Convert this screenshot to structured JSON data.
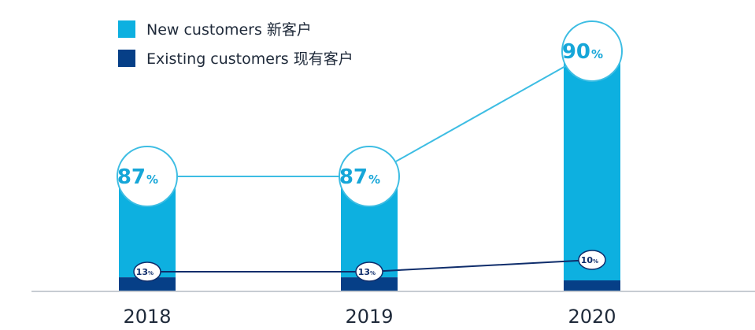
{
  "chart_data": {
    "type": "bar",
    "stacked": true,
    "categories": [
      "2018",
      "2019",
      "2020"
    ],
    "series": [
      {
        "name": "New customers 新客户",
        "values": [
          87,
          87,
          90
        ],
        "color": "#0db0e0"
      },
      {
        "name": "Existing customers 现有客户",
        "values": [
          13,
          13,
          10
        ],
        "color": "#063f87"
      }
    ],
    "unit": "%",
    "legend_position": "top-left",
    "grid": false,
    "trend_lines": true,
    "line_color_new": "#3dbde3",
    "line_color_existing": "#0f2d6b"
  }
}
